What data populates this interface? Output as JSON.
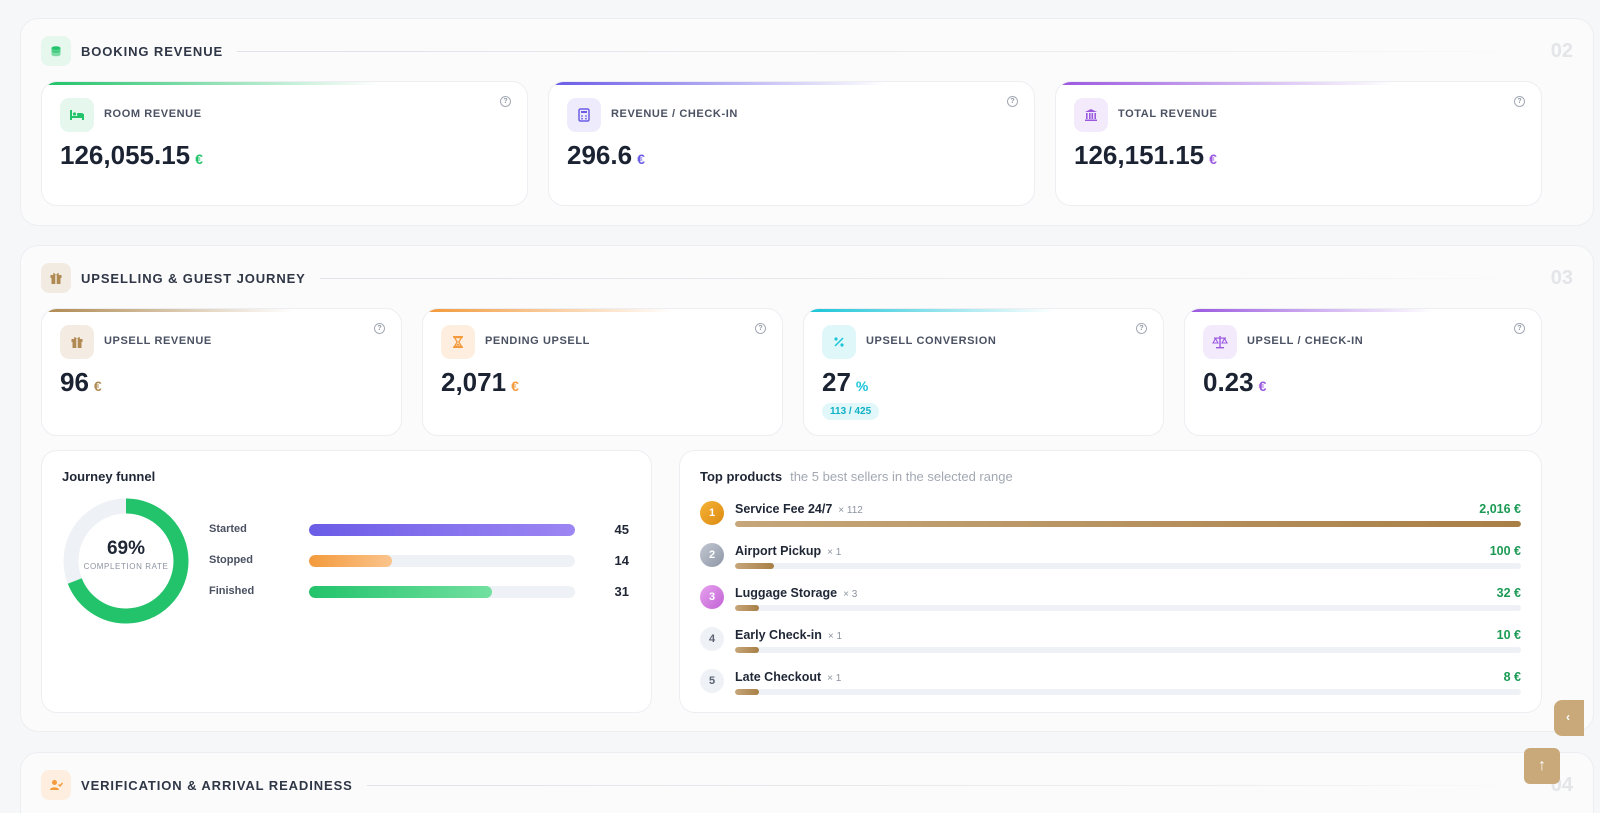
{
  "colors": {
    "green": "#22c36a",
    "indigo": "#6b5ce7",
    "purple": "#9b59e0",
    "gold": "#b08a52",
    "orange": "#f39a3c",
    "cyan": "#1bc5d8"
  },
  "booking": {
    "title": "BOOKING REVENUE",
    "number": "02",
    "icon": "coins-icon",
    "kpis": [
      {
        "label": "ROOM REVENUE",
        "value": "126,055.15",
        "unit": "€",
        "icon": "bed-icon"
      },
      {
        "label": "REVENUE / CHECK-IN",
        "value": "296.6",
        "unit": "€",
        "icon": "calculator-icon"
      },
      {
        "label": "TOTAL REVENUE",
        "value": "126,151.15",
        "unit": "€",
        "icon": "bank-icon"
      }
    ]
  },
  "upselling": {
    "title": "UPSELLING & GUEST JOURNEY",
    "number": "03",
    "icon": "gift-icon",
    "kpis": [
      {
        "label": "UPSELL REVENUE",
        "value": "96",
        "unit": "€",
        "icon": "gift-icon"
      },
      {
        "label": "PENDING UPSELL",
        "value": "2,071",
        "unit": "€",
        "icon": "hourglass-icon"
      },
      {
        "label": "UPSELL CONVERSION",
        "value": "27",
        "unit": "%",
        "pill": "113 / 425",
        "icon": "percent-icon"
      },
      {
        "label": "UPSELL / CHECK-IN",
        "value": "0.23",
        "unit": "€",
        "icon": "scale-icon"
      }
    ],
    "funnel": {
      "title": "Journey funnel",
      "completion_pct": "69%",
      "completion_fraction": 0.69,
      "completion_label": "COMPLETION RATE",
      "max": 45,
      "rows": [
        {
          "label": "Started",
          "value": 45
        },
        {
          "label": "Stopped",
          "value": 14
        },
        {
          "label": "Finished",
          "value": 31
        }
      ]
    },
    "top_products": {
      "title": "Top products",
      "subtitle": "the 5 best sellers in the selected range",
      "max_amount": 2016,
      "items": [
        {
          "rank": "1",
          "name": "Service Fee 24/7",
          "count": "× 112",
          "value": "2,016 €",
          "amount": 2016
        },
        {
          "rank": "2",
          "name": "Airport Pickup",
          "count": "× 1",
          "value": "100 €",
          "amount": 100
        },
        {
          "rank": "3",
          "name": "Luggage Storage",
          "count": "× 3",
          "value": "32 €",
          "amount": 32
        },
        {
          "rank": "4",
          "name": "Early Check-in",
          "count": "× 1",
          "value": "10 €",
          "amount": 10
        },
        {
          "rank": "5",
          "name": "Late Checkout",
          "count": "× 1",
          "value": "8 €",
          "amount": 8
        }
      ]
    }
  },
  "verification": {
    "title": "VERIFICATION & ARRIVAL READINESS",
    "number": "04",
    "icon": "user-check-icon"
  },
  "controls": {
    "side_tab_glyph": "‹",
    "scroll_top_glyph": "↑"
  }
}
